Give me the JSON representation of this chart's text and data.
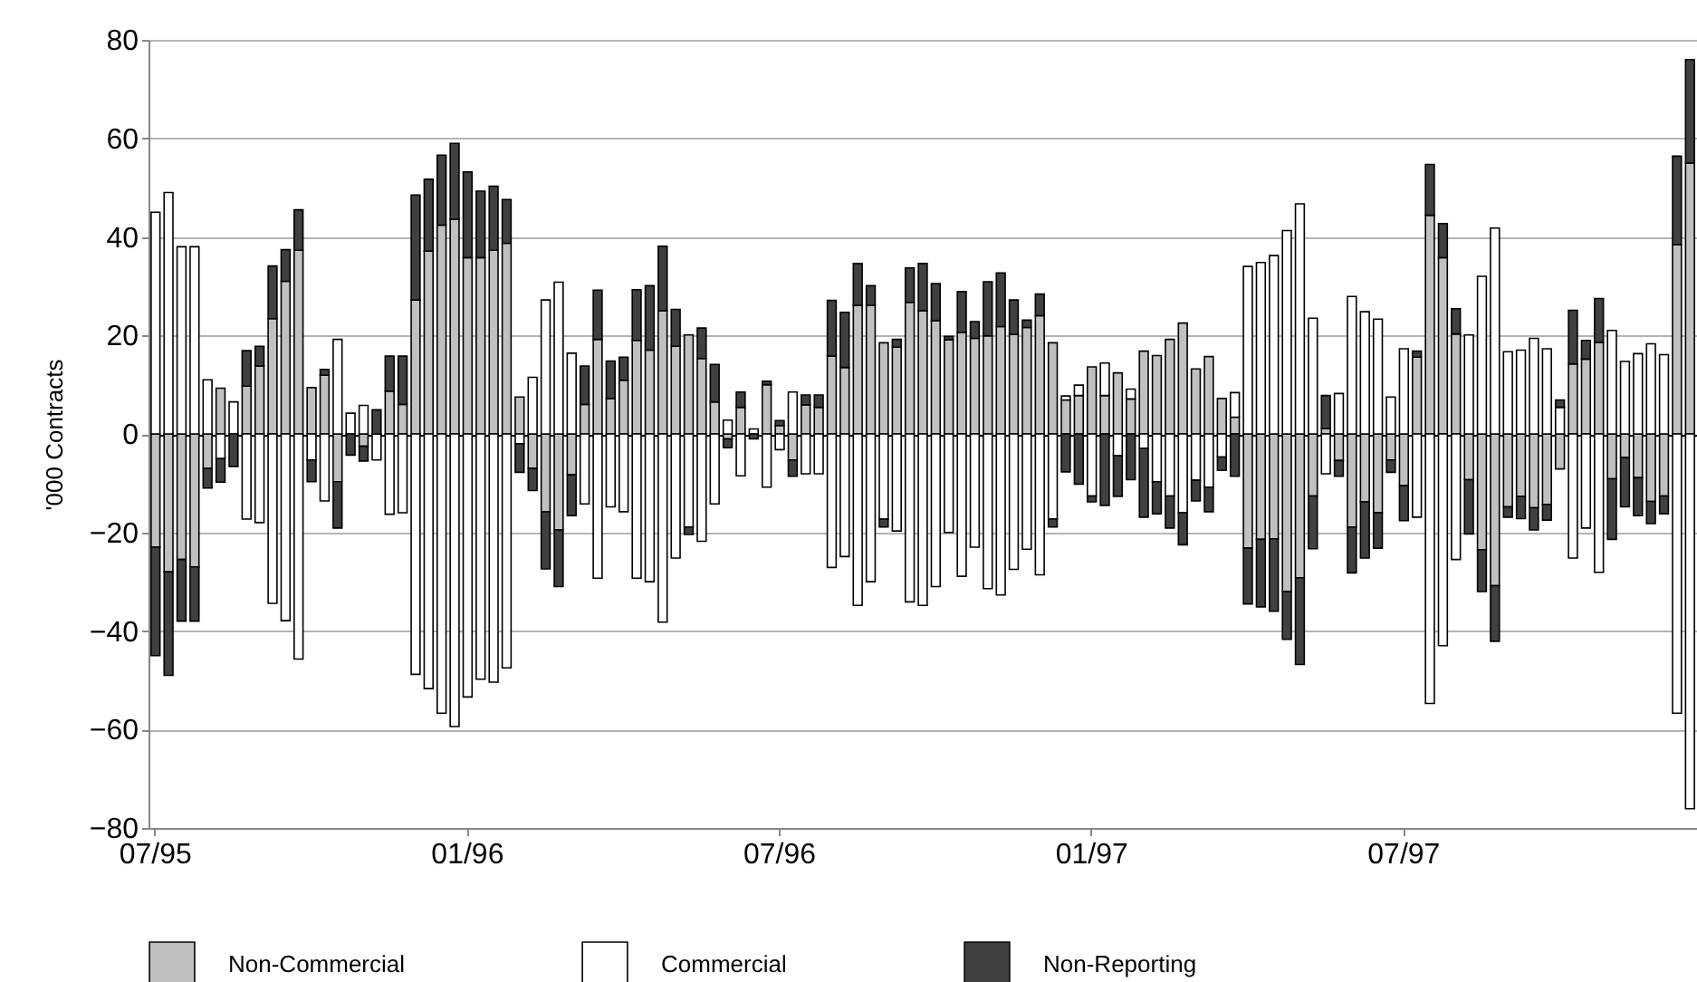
{
  "chart_data": {
    "type": "bar",
    "stacked": true,
    "ylabel": "'000 Contracts",
    "ylim": [
      -80,
      80
    ],
    "yticks": [
      -80,
      -60,
      -40,
      -20,
      0,
      20,
      40,
      60,
      80
    ],
    "grid": "y",
    "legend": "bottom",
    "categories": [
      "07/95",
      null,
      null,
      null,
      null,
      null,
      null,
      null,
      null,
      null,
      null,
      null,
      null,
      null,
      null,
      null,
      null,
      null,
      null,
      null,
      null,
      null,
      null,
      null,
      "01/96",
      null,
      null,
      null,
      null,
      null,
      null,
      null,
      null,
      null,
      null,
      null,
      null,
      null,
      null,
      null,
      null,
      null,
      null,
      null,
      null,
      null,
      null,
      null,
      "07/96",
      null,
      null,
      null,
      null,
      null,
      null,
      null,
      null,
      null,
      null,
      null,
      null,
      null,
      null,
      null,
      null,
      null,
      null,
      null,
      null,
      null,
      null,
      null,
      "01/97",
      null,
      null,
      null,
      null,
      null,
      null,
      null,
      null,
      null,
      null,
      null,
      null,
      null,
      null,
      null,
      null,
      null,
      null,
      null,
      null,
      null,
      null,
      null,
      "07/97",
      null,
      null,
      null,
      null,
      null,
      null,
      null,
      null,
      null,
      null,
      null,
      null,
      null,
      null,
      null,
      null,
      null,
      null,
      null,
      null,
      null,
      null
    ],
    "series": [
      {
        "name": "Non-Commercial",
        "color": "#c0c0c0",
        "values": [
          -23,
          -28,
          -25.5,
          -27,
          -7,
          9.3,
          0,
          9.7,
          13.8,
          23.4,
          31,
          37.3,
          9.4,
          11.9,
          -9.7,
          0,
          -2.5,
          0,
          8.7,
          6,
          27.2,
          37.1,
          42.4,
          43.6,
          35.8,
          35.8,
          37.3,
          38.7,
          7.5,
          -7,
          -15.8,
          -19.5,
          -8.3,
          6,
          19.2,
          7.2,
          10.9,
          19,
          17,
          25,
          17.8,
          20.1,
          15.3,
          6.5,
          -1,
          5.4,
          0,
          10,
          1.7,
          -5.3,
          5.9,
          5.4,
          15.8,
          13.5,
          26.1,
          26.1,
          18.5,
          17.6,
          26.7,
          25,
          23,
          19.1,
          20.6,
          19.4,
          19.9,
          21.8,
          20.2,
          21.6,
          24,
          18.5,
          6.9,
          7.8,
          13.6,
          7.8,
          12.4,
          7.1,
          16.8,
          15.9,
          19.2,
          22.5,
          13.2,
          15.7,
          7.2,
          3.4,
          -23.2,
          -21.4,
          -21.3,
          -32,
          -29.2,
          -12.6,
          1.1,
          -5.4,
          -18.9,
          -13.8,
          -16,
          -5.3,
          -10.5,
          15.6,
          44.4,
          35.8,
          20.3,
          -9.3,
          -23.5,
          -30.8,
          -14.8,
          -12.7,
          -15,
          -14.3,
          -7.1,
          14.2,
          15.2,
          18.6,
          -9.1,
          -4.8,
          -8.9,
          -13.7,
          -12.6,
          38.4,
          55
        ]
      },
      {
        "name": "Commercial",
        "color": "#ffffff",
        "values": [
          45,
          49,
          38,
          38,
          11,
          -5,
          6.5,
          -17.3,
          -18,
          -34.4,
          -37.9,
          -45.7,
          -5.3,
          -13.6,
          19.2,
          4.2,
          5.8,
          -5.3,
          -16.3,
          -16,
          -48.8,
          -51.7,
          -56.7,
          -59.4,
          -53.4,
          -49.8,
          -50.4,
          -47.5,
          -2,
          11.5,
          27.2,
          30.8,
          16.4,
          -14.2,
          -29.3,
          -14.8,
          -15.8,
          -29.3,
          -30,
          -38.2,
          -25.2,
          -18.9,
          -21.8,
          -14.2,
          2.8,
          -8.5,
          1,
          -10.8,
          -3.2,
          8.5,
          -8.1,
          -8.1,
          -27.1,
          -24.9,
          -34.8,
          -30,
          -17.3,
          -19.7,
          -34.1,
          -34.8,
          -31,
          -20,
          -28.9,
          -23,
          -31.4,
          -32.7,
          -27.5,
          -23.4,
          -28.6,
          -17.3,
          0.8,
          2.1,
          -12.6,
          6.6,
          -4.4,
          2,
          -2.9,
          -9.7,
          -12.6,
          -16,
          -9.4,
          -10.8,
          -4.7,
          5,
          34,
          34.8,
          36.2,
          41.3,
          46.7,
          23.5,
          -8.1,
          8.2,
          27.9,
          24.8,
          23.3,
          7.5,
          17.3,
          -16.9,
          -54.7,
          -43,
          -25.5,
          20.1,
          32,
          41.8,
          16.7,
          17,
          19.4,
          17.3,
          5.4,
          -25.2,
          -19.1,
          -28.1,
          21,
          14.7,
          16.3,
          18.3,
          16.1,
          -56.7,
          -76.1
        ]
      },
      {
        "name": "Non-Reporting",
        "color": "#404040",
        "values": [
          -22,
          -21,
          -12.5,
          -11,
          -4,
          -4.8,
          -6.6,
          7.2,
          4,
          10.7,
          6.4,
          8.2,
          -4.4,
          1.2,
          -9.4,
          -4.3,
          -3,
          4.9,
          7.1,
          9.8,
          21.3,
          14.6,
          14.2,
          15.4,
          17.4,
          13.5,
          13,
          8.9,
          -5.8,
          -4.5,
          -11.6,
          -11.5,
          -8.3,
          7.8,
          10,
          7.6,
          4.7,
          10.3,
          13.1,
          13.1,
          7.5,
          -1.5,
          6.2,
          7.6,
          -1.8,
          3.1,
          -1,
          0.7,
          1,
          -3.3,
          2,
          2.5,
          11.3,
          11.2,
          8.5,
          4,
          -1.6,
          1.6,
          7,
          9.6,
          7.5,
          0.7,
          8.3,
          3.4,
          11,
          10.9,
          7,
          1.5,
          4.4,
          -1.6,
          -7.7,
          -10.2,
          -1.2,
          -14.5,
          -8.3,
          -9.3,
          -14,
          -6.5,
          -6.5,
          -6.5,
          -4.2,
          -5,
          -2.7,
          -8.6,
          -11.3,
          -13.7,
          -14.7,
          -9.7,
          -17.6,
          -10.7,
          6.7,
          -3.2,
          -9.3,
          -11.4,
          -7.2,
          -2.5,
          -7.1,
          1.2,
          10.3,
          6.9,
          5.1,
          -11,
          -8.5,
          -11.3,
          -2.1,
          -4.5,
          -4.5,
          -3.2,
          1.5,
          10.9,
          3.8,
          8.9,
          -12.3,
          -10,
          -7.7,
          -4.5,
          -3.6,
          18,
          21
        ]
      }
    ]
  }
}
